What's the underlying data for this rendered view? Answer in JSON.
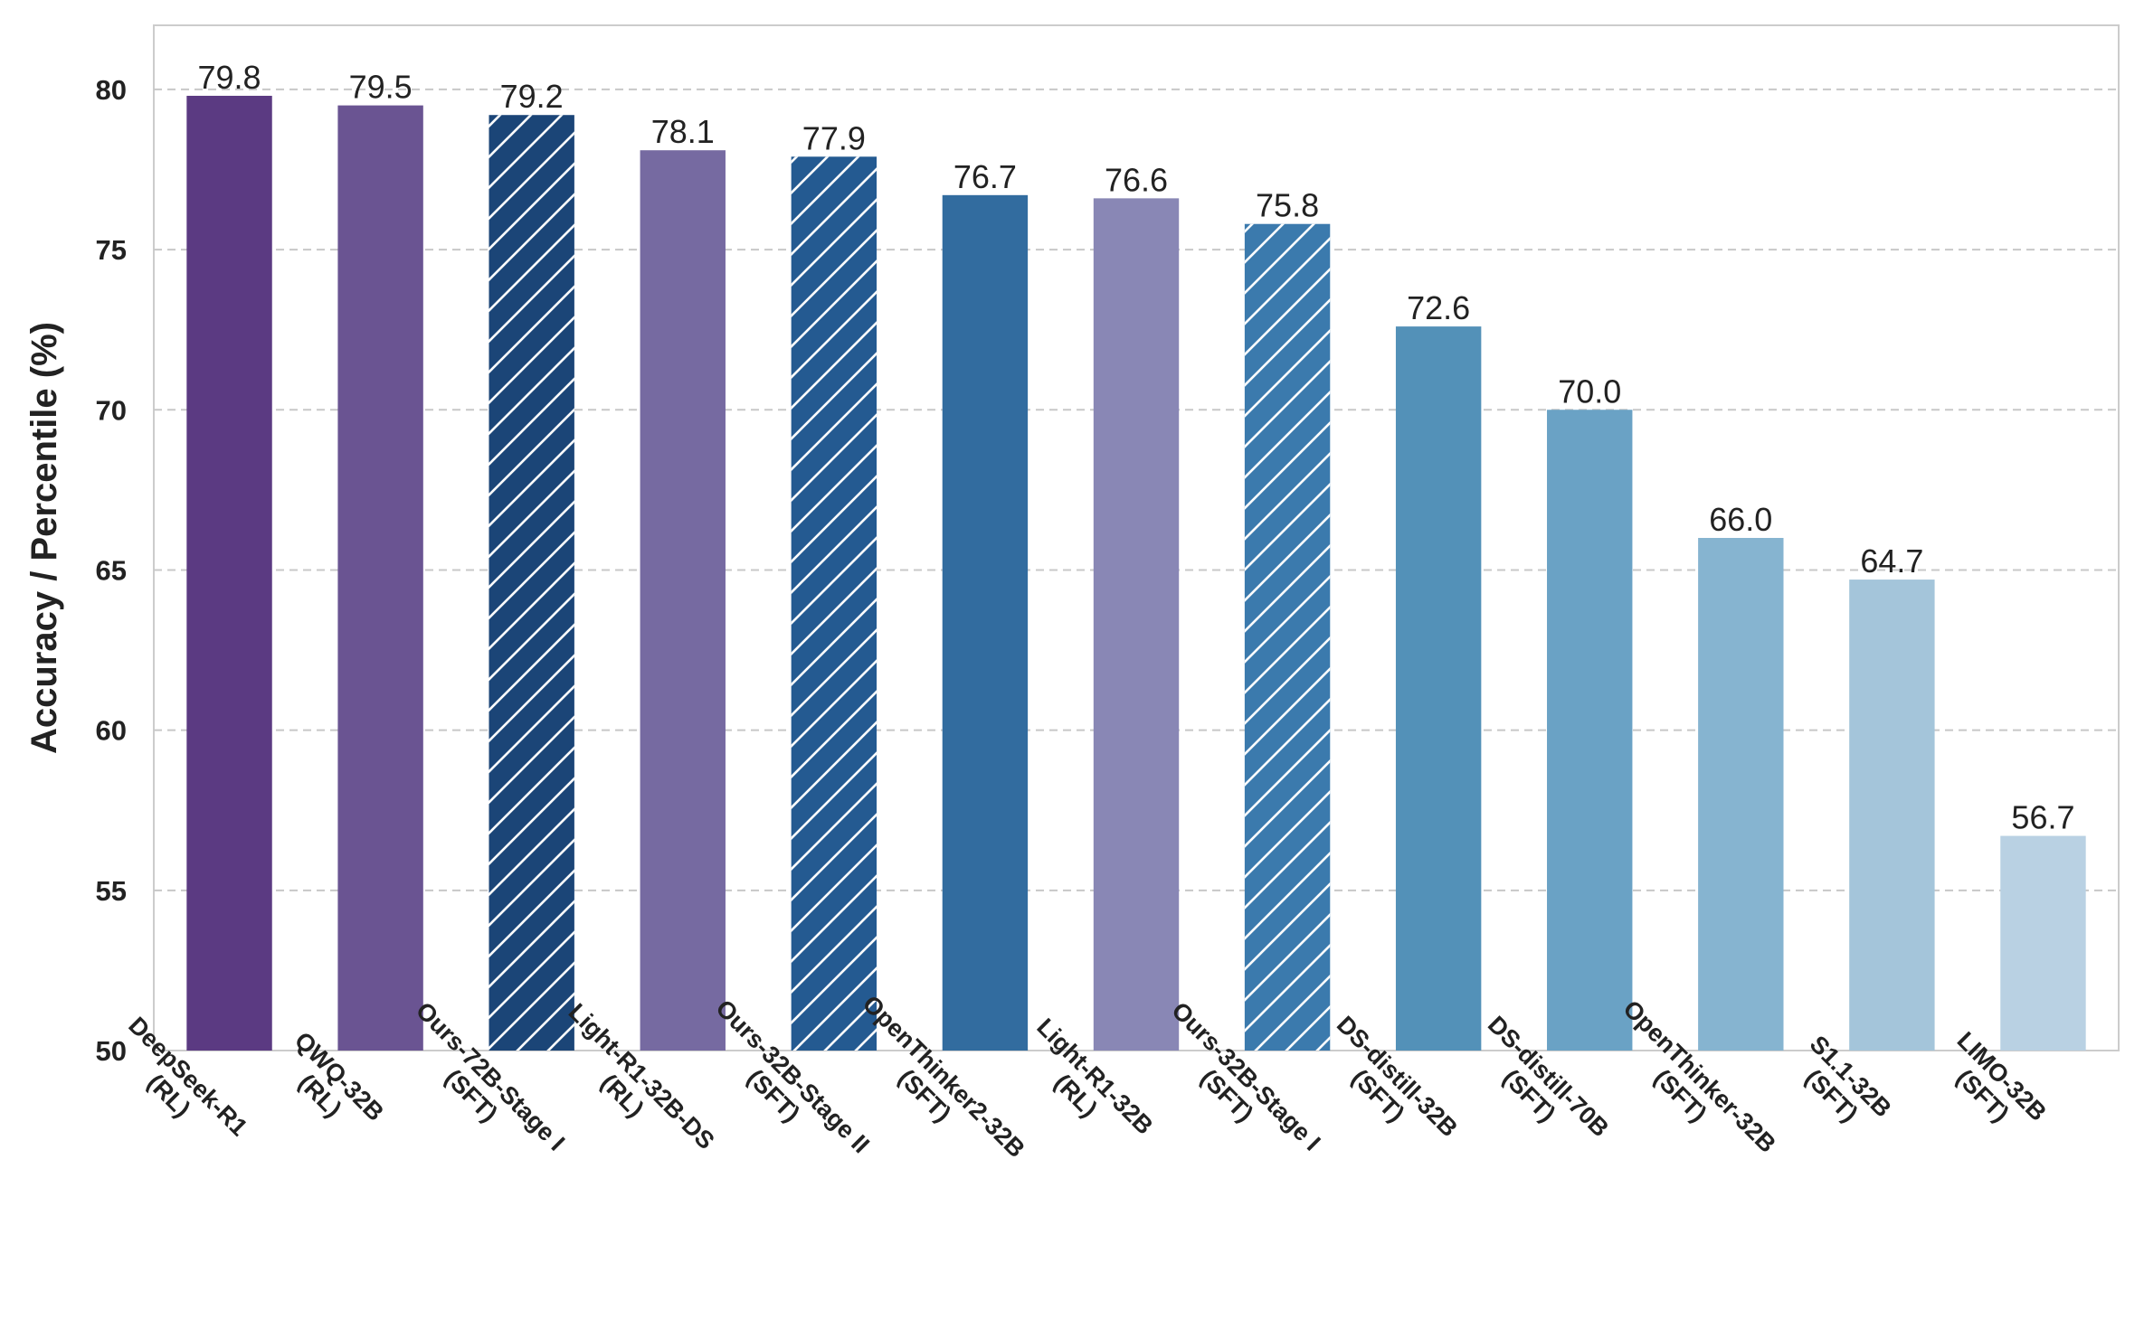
{
  "chart_data": {
    "type": "bar",
    "title": "",
    "xlabel": "",
    "ylabel": "Accuracy / Percentile (%)",
    "ylim": [
      50,
      82
    ],
    "yticks": [
      50,
      55,
      60,
      65,
      70,
      75,
      80
    ],
    "grid": "y-dashed",
    "legend": "none",
    "categories": [
      [
        "DeepSeek-R1",
        "(RL)"
      ],
      [
        "QWQ-32B",
        "(RL)"
      ],
      [
        "Ours-72B-Stage I",
        "(SFT)"
      ],
      [
        "Light-R1-32B-DS",
        "(RL)"
      ],
      [
        "Ours-32B-Stage II",
        "(SFT)"
      ],
      [
        "OpenThinker2-32B",
        "(SFT)"
      ],
      [
        "Light-R1-32B",
        "(RL)"
      ],
      [
        "Ours-32B-Stage I",
        "(SFT)"
      ],
      [
        "DS-distill-32B",
        "(SFT)"
      ],
      [
        "DS-distill-70B",
        "(SFT)"
      ],
      [
        "OpenThinker-32B",
        "(SFT)"
      ],
      [
        "S1.1-32B",
        "(SFT)"
      ],
      [
        "LIMO-32B",
        "(SFT)"
      ]
    ],
    "values": [
      79.8,
      79.5,
      79.2,
      78.1,
      77.9,
      76.7,
      76.6,
      75.8,
      72.6,
      70.0,
      66.0,
      64.7,
      56.7
    ],
    "value_labels": [
      "79.8",
      "79.5",
      "79.2",
      "78.1",
      "77.9",
      "76.7",
      "76.6",
      "75.8",
      "72.6",
      "70.0",
      "66.0",
      "64.7",
      "56.7"
    ],
    "hatched": [
      false,
      false,
      true,
      false,
      true,
      false,
      false,
      true,
      false,
      false,
      false,
      false,
      false
    ],
    "colors": [
      "#5b3a82",
      "#6a5492",
      "#1b4577",
      "#766aa1",
      "#245a91",
      "#326c9f",
      "#8987b5",
      "#3b7aad",
      "#5391b8",
      "#6aa2c5",
      "#86b4d0",
      "#a4c5da",
      "#b9d1e3"
    ]
  }
}
